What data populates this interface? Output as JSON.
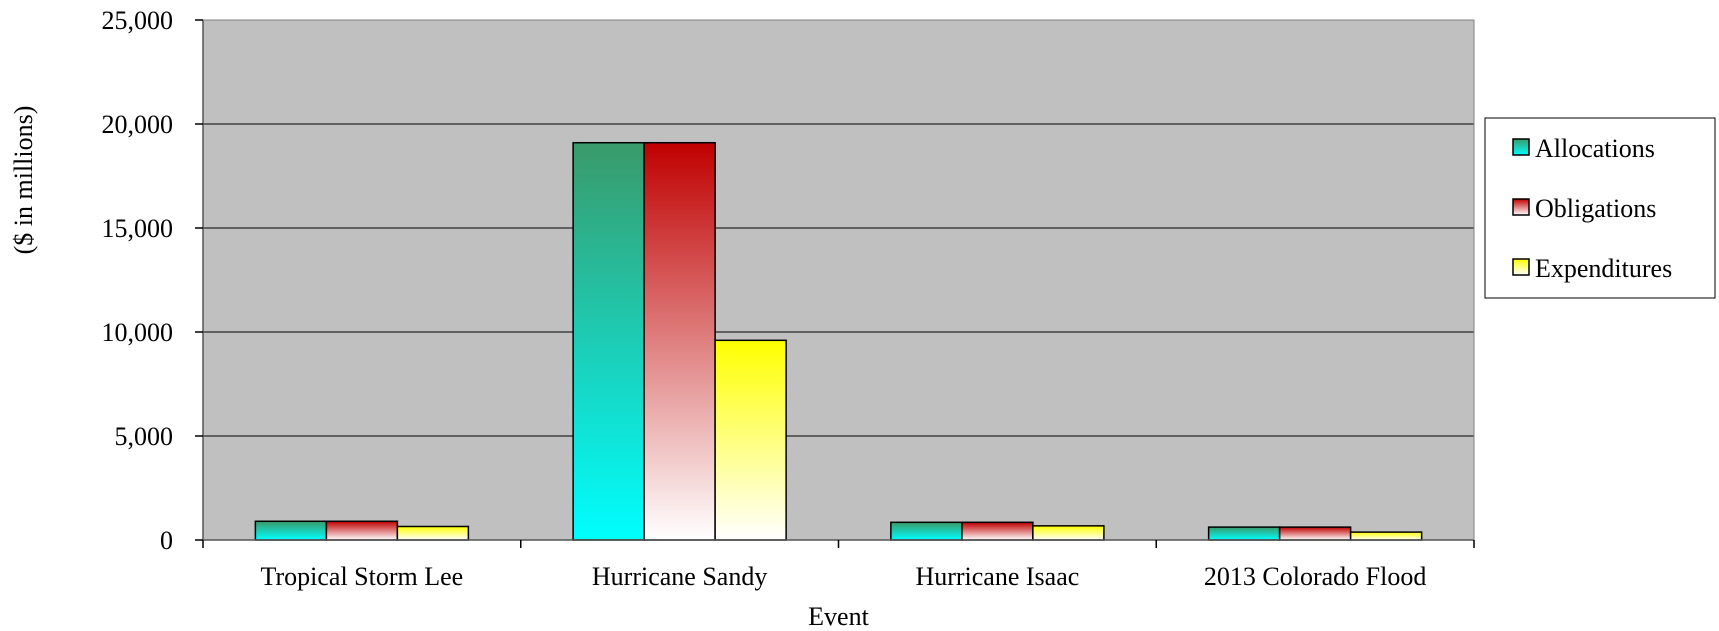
{
  "chart_data": {
    "type": "bar",
    "categories": [
      "Tropical Storm Lee",
      "Hurricane Sandy",
      "Hurricane Isaac",
      "2013 Colorado Flood"
    ],
    "series": [
      {
        "name": "Allocations",
        "values": [
          900,
          19100,
          850,
          620
        ],
        "color": "#00a0a0",
        "gradient": [
          "#3a9a6a",
          "#00ffff"
        ]
      },
      {
        "name": "Obligations",
        "values": [
          900,
          19100,
          850,
          620
        ],
        "color": "#c00000",
        "gradient": [
          "#c00000",
          "#ffffff"
        ]
      },
      {
        "name": "Expenditures",
        "values": [
          650,
          9600,
          680,
          380
        ],
        "color": "#ffff00",
        "gradient": [
          "#ffff00",
          "#ffffff"
        ]
      }
    ],
    "xlabel": "Event",
    "ylabel": "($ in millions)",
    "ylim": [
      0,
      25000
    ],
    "yticks": [
      0,
      5000,
      10000,
      15000,
      20000,
      25000
    ],
    "ytick_labels": [
      "0",
      "5,000",
      "10,000",
      "15,000",
      "20,000",
      "25,000"
    ],
    "grid": true,
    "plot_background": "#c0c0c0",
    "legend_position": "right"
  }
}
